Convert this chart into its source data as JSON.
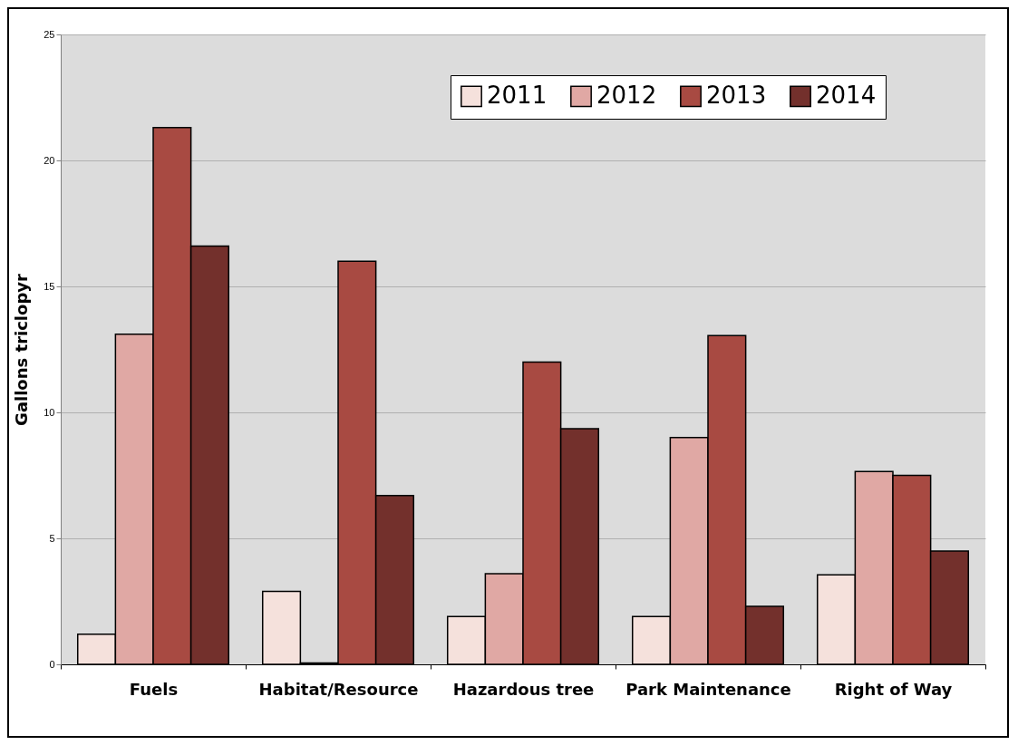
{
  "chart_data": {
    "type": "bar",
    "ylabel": "Gallons triclopyr",
    "categories": [
      "Fuels",
      "Habitat/Resource",
      "Hazardous tree",
      "Park Maintenance",
      "Right of Way"
    ],
    "series": [
      {
        "name": "2011",
        "color": "#f5e1dc",
        "values": [
          1.2,
          2.9,
          1.9,
          1.9,
          3.55
        ]
      },
      {
        "name": "2012",
        "color": "#e0a8a4",
        "values": [
          13.1,
          0.05,
          3.6,
          9.0,
          7.65
        ]
      },
      {
        "name": "2013",
        "color": "#a84a42",
        "values": [
          21.3,
          16.0,
          12.0,
          13.05,
          7.5
        ]
      },
      {
        "name": "2014",
        "color": "#73302c",
        "values": [
          16.6,
          6.7,
          9.35,
          2.3,
          4.5
        ]
      }
    ],
    "ylim": [
      0,
      25
    ],
    "yticks": [
      0,
      5,
      10,
      15,
      20,
      25
    ],
    "grid": "y",
    "legend": "top right"
  }
}
